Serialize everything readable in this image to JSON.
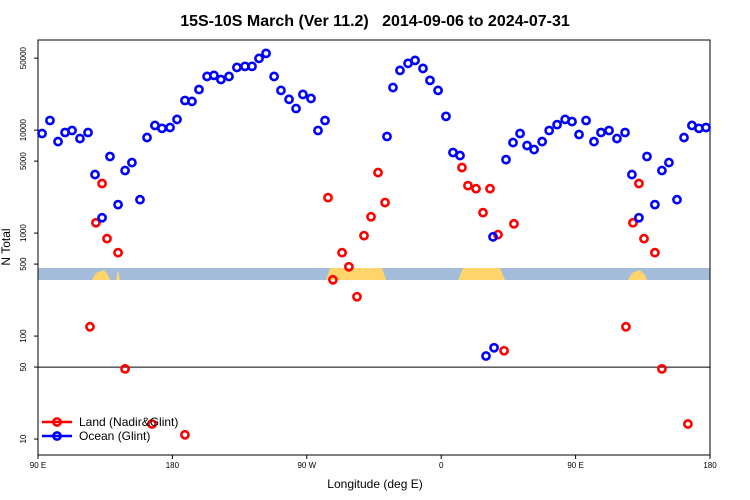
{
  "chart_data": {
    "type": "scatter",
    "title": "15S-10S March (Ver 11.2)   2014-09-06 to 2024-07-31",
    "xlabel": "Longitude (deg E)",
    "ylabel": "N Total",
    "xlim": [
      90,
      540
    ],
    "ylim": [
      7,
      75000
    ],
    "log_y": true,
    "xticks": [
      {
        "value": 90,
        "label": "90 E"
      },
      {
        "value": 180,
        "label": "180"
      },
      {
        "value": 270,
        "label": "90 W"
      },
      {
        "value": 360,
        "label": "0"
      },
      {
        "value": 450,
        "label": "90 E"
      },
      {
        "value": 540,
        "label": "180"
      }
    ],
    "yticks": [
      10,
      50,
      100,
      500,
      1000,
      5000,
      10000,
      50000
    ],
    "hline": 50,
    "legend": "bottom left",
    "series": [
      {
        "name": "Land (Nadir&Glint)",
        "color": "#ff0000",
        "x": [
          124.8,
          128.8,
          132.9,
          136.2,
          143.6,
          148.3,
          166.3,
          188.4,
          284.2,
          287.5,
          293.6,
          298.2,
          303.6,
          308.3,
          313.0,
          317.7,
          322.4,
          373.9,
          377.9,
          383.3,
          388.0,
          392.7,
          398.0,
          402.1,
          408.7,
          483.7,
          488.4,
          492.4,
          495.8,
          503.1,
          507.8,
          525.2
        ],
        "values": [
          123,
          1260,
          3030,
          883,
          645,
          48,
          14,
          11,
          2210,
          352,
          645,
          471,
          241,
          944,
          1440,
          3870,
          1980,
          4330,
          2890,
          2700,
          1580,
          2700,
          965,
          72,
          1230,
          123,
          1260,
          3030,
          883,
          645,
          48,
          14
        ]
      },
      {
        "name": "Ocean (Glint)",
        "color": "#0000ff",
        "x": [
          92.7,
          98.0,
          103.4,
          108.1,
          112.8,
          118.1,
          123.5,
          128.2,
          132.9,
          138.2,
          143.6,
          148.3,
          152.9,
          158.3,
          163.0,
          168.3,
          173.0,
          178.4,
          183.1,
          188.4,
          193.1,
          197.8,
          203.2,
          207.8,
          212.5,
          217.9,
          223.2,
          228.6,
          233.3,
          238.0,
          242.7,
          248.1,
          252.7,
          258.1,
          262.8,
          267.4,
          272.8,
          277.5,
          282.2,
          323.7,
          327.7,
          332.4,
          337.8,
          342.5,
          347.8,
          352.5,
          357.9,
          363.2,
          367.9,
          372.6,
          390.0,
          394.7,
          395.4,
          403.4,
          408.1,
          412.8,
          417.5,
          422.2,
          427.6,
          432.3,
          437.6,
          443.0,
          447.6,
          452.3,
          457.0,
          462.3,
          467.0,
          472.4,
          477.7,
          483.1,
          487.7,
          492.4,
          497.8,
          503.1,
          507.8,
          512.5,
          517.9,
          522.6,
          527.9,
          532.6,
          537.3
        ],
        "values": [
          9270,
          12400,
          7740,
          9480,
          9910,
          8280,
          9480,
          3700,
          1410,
          5540,
          1890,
          4050,
          4840,
          2110,
          8470,
          11100,
          10400,
          10600,
          12700,
          19400,
          19000,
          24800,
          33200,
          34000,
          31000,
          33200,
          40600,
          41600,
          41600,
          49700,
          55600,
          33200,
          24300,
          19900,
          16200,
          22200,
          20300,
          9910,
          12400,
          8670,
          25900,
          38000,
          44500,
          47500,
          39700,
          30400,
          24300,
          13600,
          6060,
          5660,
          64,
          920,
          77,
          5170,
          7570,
          9270,
          7080,
          6470,
          7740,
          9910,
          11300,
          12700,
          12100,
          9060,
          12400,
          7740,
          9480,
          9910,
          8280,
          9480,
          3700,
          1410,
          5540,
          1890,
          4050,
          4840,
          2110,
          8470,
          11100,
          10400,
          10600
        ]
      }
    ]
  }
}
